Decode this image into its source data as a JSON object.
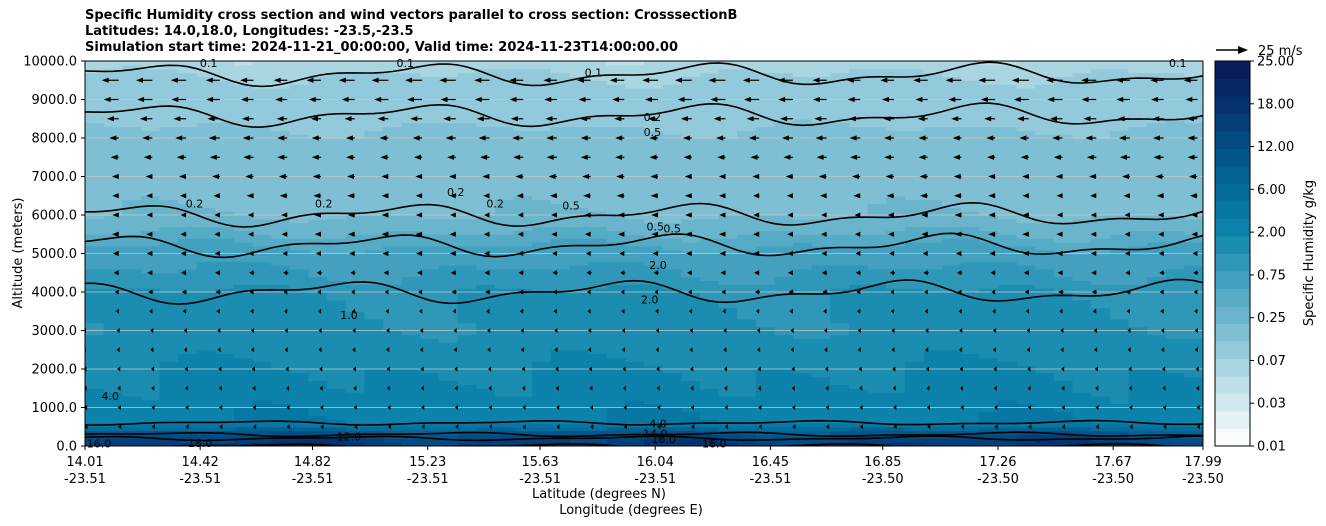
{
  "title_lines": [
    "Specific Humidity cross section and wind vectors parallel to cross section: CrosssectionB",
    "Latitudes: 14.0,18.0, Longitudes: -23.5,-23.5",
    "Simulation start time: 2024-11-21_00:00:00, Valid time: 2024-11-23T14:00:00.00"
  ],
  "chart_data": {
    "type": "heatmap",
    "xlabel_lat": "Latitude (degrees N)",
    "xlabel_lon": "Longitude (degrees E)",
    "ylabel": "Altitude (meters)",
    "ylim": [
      0,
      10000
    ],
    "xlim": [
      14.01,
      17.99
    ],
    "x_ticks": [
      {
        "value": 14.01,
        "lat": "14.01",
        "lon": "-23.51"
      },
      {
        "value": 14.42,
        "lat": "14.42",
        "lon": "-23.51"
      },
      {
        "value": 14.82,
        "lat": "14.82",
        "lon": "-23.51"
      },
      {
        "value": 15.23,
        "lat": "15.23",
        "lon": "-23.51"
      },
      {
        "value": 15.63,
        "lat": "15.63",
        "lon": "-23.51"
      },
      {
        "value": 16.04,
        "lat": "16.04",
        "lon": "-23.51"
      },
      {
        "value": 16.45,
        "lat": "16.45",
        "lon": "-23.51"
      },
      {
        "value": 16.85,
        "lat": "16.85",
        "lon": "-23.50"
      },
      {
        "value": 17.26,
        "lat": "17.26",
        "lon": "-23.50"
      },
      {
        "value": 17.67,
        "lat": "17.67",
        "lon": "-23.50"
      },
      {
        "value": 17.99,
        "lat": "17.99",
        "lon": "-23.50"
      }
    ],
    "y_ticks": [
      {
        "value": 0,
        "label": "0.0"
      },
      {
        "value": 1000,
        "label": "1000.0"
      },
      {
        "value": 2000,
        "label": "2000.0"
      },
      {
        "value": 3000,
        "label": "3000.0"
      },
      {
        "value": 4000,
        "label": "4000.0"
      },
      {
        "value": 5000,
        "label": "5000.0"
      },
      {
        "value": 6000,
        "label": "6000.0"
      },
      {
        "value": 7000,
        "label": "7000.0"
      },
      {
        "value": 8000,
        "label": "8000.0"
      },
      {
        "value": 9000,
        "label": "9000.0"
      },
      {
        "value": 10000,
        "label": "10000.0"
      }
    ],
    "grid": "horizontal",
    "colorbar": {
      "label": "Specific Humidity g/kg",
      "levels": [
        0.01,
        0.02,
        0.03,
        0.05,
        0.07,
        0.1,
        0.25,
        0.5,
        0.75,
        1.0,
        1.5,
        2.0,
        3.0,
        4.0,
        6.0,
        8.0,
        10.0,
        12.0,
        14.0,
        16.0,
        18.0,
        20.0,
        25.0
      ],
      "tick_labels": [
        "0.01",
        "0.03",
        "0.07",
        "0.25",
        "0.75",
        "2.00",
        "6.00",
        "12.00",
        "18.00",
        "25.00"
      ],
      "colors": [
        "#f7fbfd",
        "#e4f1f5",
        "#d1e8ee",
        "#bddfe8",
        "#a9d5e1",
        "#93cadb",
        "#7ebfd3",
        "#6ab5cc",
        "#56abc5",
        "#43a1bf",
        "#2f97b8",
        "#1a8db0",
        "#0d82aa",
        "#0777a4",
        "#056c9c",
        "#036294",
        "#03568b",
        "#034b82",
        "#043f78",
        "#05336f",
        "#062866",
        "#071d5c"
      ]
    },
    "humidity_profile": [
      {
        "alt": 0,
        "q": 16.0
      },
      {
        "alt": 200,
        "q": 14.0
      },
      {
        "alt": 400,
        "q": 10.0
      },
      {
        "alt": 600,
        "q": 4.0
      },
      {
        "alt": 1000,
        "q": 3.5
      },
      {
        "alt": 2000,
        "q": 3.0
      },
      {
        "alt": 3000,
        "q": 2.2
      },
      {
        "alt": 4000,
        "q": 2.0
      },
      {
        "alt": 5000,
        "q": 1.2
      },
      {
        "alt": 6000,
        "q": 0.5
      },
      {
        "alt": 7000,
        "q": 0.35
      },
      {
        "alt": 8000,
        "q": 0.3
      },
      {
        "alt": 9000,
        "q": 0.15
      },
      {
        "alt": 10000,
        "q": 0.08
      }
    ],
    "contour_labels": [
      {
        "text": "0.1",
        "x": 14.45,
        "y": 9950
      },
      {
        "text": "0.1",
        "x": 15.15,
        "y": 9950
      },
      {
        "text": "0.1",
        "x": 15.82,
        "y": 9700
      },
      {
        "text": "0.1",
        "x": 17.9,
        "y": 9950
      },
      {
        "text": "0.2",
        "x": 16.03,
        "y": 8550
      },
      {
        "text": "0.5",
        "x": 16.03,
        "y": 8150
      },
      {
        "text": "0.2",
        "x": 14.4,
        "y": 6300
      },
      {
        "text": "0.2",
        "x": 14.86,
        "y": 6300
      },
      {
        "text": "0.2",
        "x": 15.33,
        "y": 6600
      },
      {
        "text": "0.2",
        "x": 15.47,
        "y": 6300
      },
      {
        "text": "0.5",
        "x": 15.74,
        "y": 6250
      },
      {
        "text": "0.5",
        "x": 16.04,
        "y": 5700
      },
      {
        "text": "0.5",
        "x": 16.1,
        "y": 5650
      },
      {
        "text": "2.0",
        "x": 16.05,
        "y": 4700
      },
      {
        "text": "2.0",
        "x": 16.02,
        "y": 3800
      },
      {
        "text": "1.0",
        "x": 14.95,
        "y": 3400
      },
      {
        "text": "4.0",
        "x": 14.1,
        "y": 1300
      },
      {
        "text": "4.0",
        "x": 16.05,
        "y": 580
      },
      {
        "text": "12.0",
        "x": 14.95,
        "y": 250
      },
      {
        "text": "14.0",
        "x": 16.04,
        "y": 320
      },
      {
        "text": "16.0",
        "x": 16.07,
        "y": 180
      },
      {
        "text": "16.0",
        "x": 16.25,
        "y": 60
      },
      {
        "text": "16.0",
        "x": 14.06,
        "y": 60
      },
      {
        "text": "18.0",
        "x": 14.42,
        "y": 80
      }
    ],
    "wind_vectors": {
      "reference_label": "25 m/s",
      "reference_speed": 25,
      "x": [
        14.01,
        14.13,
        14.25,
        14.37,
        14.49,
        14.61,
        14.73,
        14.85,
        14.97,
        15.09,
        15.21,
        15.33,
        15.45,
        15.57,
        15.69,
        15.81,
        15.93,
        16.05,
        16.17,
        16.29,
        16.41,
        16.53,
        16.65,
        16.77,
        16.89,
        17.01,
        17.13,
        17.25,
        17.37,
        17.49,
        17.61,
        17.73,
        17.85,
        17.97
      ],
      "profile": [
        {
          "alt": 9500,
          "u": -10
        },
        {
          "alt": 9000,
          "u": -9
        },
        {
          "alt": 8500,
          "u": -7.5
        },
        {
          "alt": 8000,
          "u": -6.5
        },
        {
          "alt": 7500,
          "u": -6
        },
        {
          "alt": 7000,
          "u": -5
        },
        {
          "alt": 6500,
          "u": -4.5
        },
        {
          "alt": 6000,
          "u": -4
        },
        {
          "alt": 5500,
          "u": -4
        },
        {
          "alt": 5000,
          "u": -3.5
        },
        {
          "alt": 4500,
          "u": -3
        },
        {
          "alt": 4000,
          "u": -2.5
        },
        {
          "alt": 3500,
          "u": -2
        },
        {
          "alt": 3000,
          "u": -1.5
        },
        {
          "alt": 2500,
          "u": -1.5
        },
        {
          "alt": 2000,
          "u": -1
        },
        {
          "alt": 1500,
          "u": -0.8
        },
        {
          "alt": 1000,
          "u": -0.5
        },
        {
          "alt": 500,
          "u": -0.3
        }
      ]
    }
  }
}
